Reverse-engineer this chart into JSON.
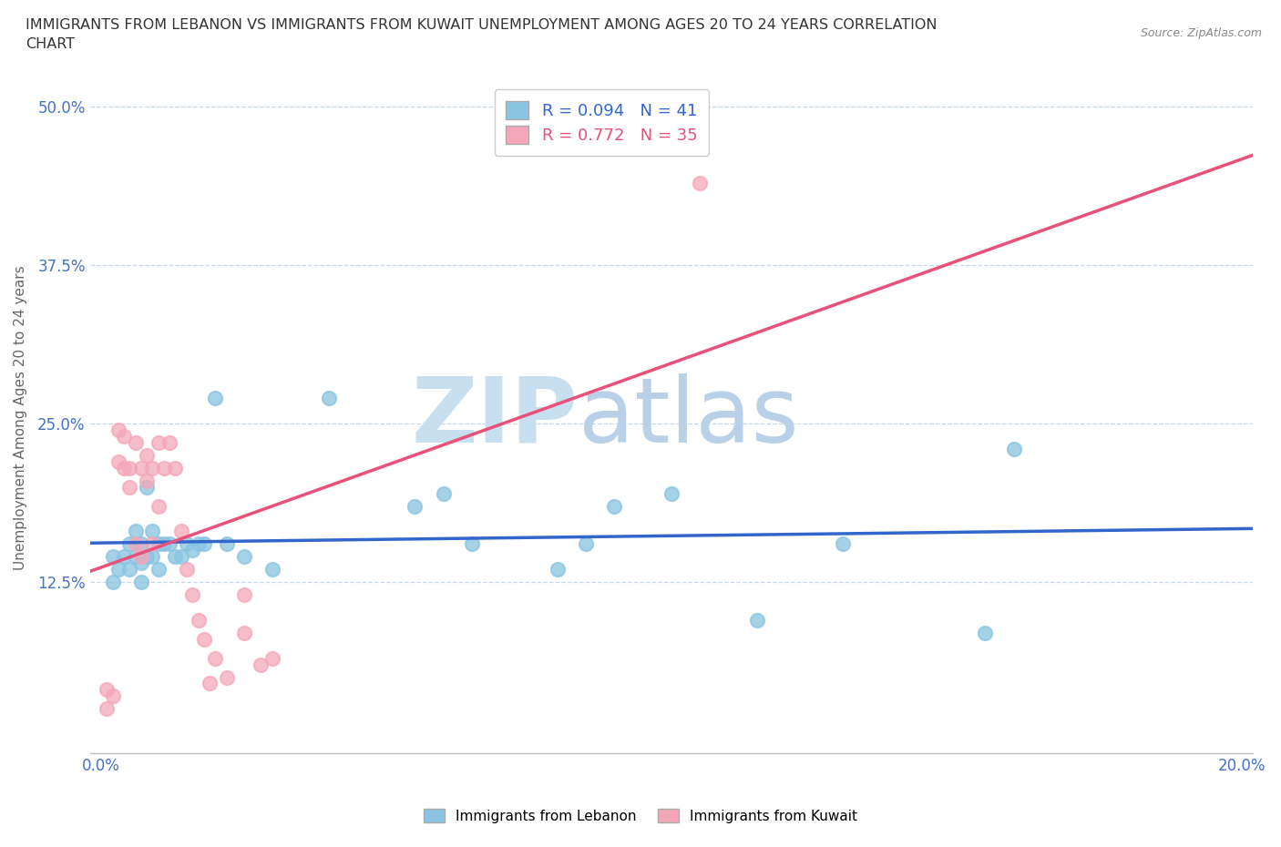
{
  "title_line1": "IMMIGRANTS FROM LEBANON VS IMMIGRANTS FROM KUWAIT UNEMPLOYMENT AMONG AGES 20 TO 24 YEARS CORRELATION",
  "title_line2": "CHART",
  "source": "Source: ZipAtlas.com",
  "ylabel": "Unemployment Among Ages 20 to 24 years",
  "xlim": [
    -0.002,
    0.202
  ],
  "ylim": [
    -0.01,
    0.52
  ],
  "xticks": [
    0.0,
    0.04,
    0.08,
    0.12,
    0.16,
    0.2
  ],
  "xticklabels": [
    "0.0%",
    "",
    "",
    "",
    "",
    "20.0%"
  ],
  "yticks": [
    0.0,
    0.125,
    0.25,
    0.375,
    0.5
  ],
  "yticklabels": [
    "",
    "12.5%",
    "25.0%",
    "37.5%",
    "50.0%"
  ],
  "lebanon_dot_color": "#89c4e1",
  "kuwait_dot_color": "#f4a7b9",
  "lebanon_line_color": "#3366cc",
  "kuwait_line_color": "#e8517a",
  "R_lebanon": 0.094,
  "N_lebanon": 41,
  "R_kuwait": 0.772,
  "N_kuwait": 35,
  "watermark_top": "ZIP",
  "watermark_bottom": "atlas",
  "watermark_color": "#ccddf0",
  "grid_color": "#c8d8e8",
  "tick_color": "#4472c4",
  "title_color": "#333333",
  "source_color": "#888888",
  "lebanon_scatter_x": [
    0.002,
    0.002,
    0.003,
    0.004,
    0.005,
    0.005,
    0.006,
    0.006,
    0.007,
    0.007,
    0.007,
    0.008,
    0.008,
    0.009,
    0.009,
    0.01,
    0.01,
    0.011,
    0.012,
    0.013,
    0.014,
    0.015,
    0.016,
    0.017,
    0.018,
    0.02,
    0.022,
    0.025,
    0.03,
    0.04,
    0.055,
    0.06,
    0.065,
    0.08,
    0.085,
    0.09,
    0.1,
    0.115,
    0.13,
    0.155,
    0.16
  ],
  "lebanon_scatter_y": [
    0.145,
    0.125,
    0.135,
    0.145,
    0.155,
    0.135,
    0.165,
    0.145,
    0.155,
    0.14,
    0.125,
    0.2,
    0.145,
    0.165,
    0.145,
    0.155,
    0.135,
    0.155,
    0.155,
    0.145,
    0.145,
    0.155,
    0.15,
    0.155,
    0.155,
    0.27,
    0.155,
    0.145,
    0.135,
    0.27,
    0.185,
    0.195,
    0.155,
    0.135,
    0.155,
    0.185,
    0.195,
    0.095,
    0.155,
    0.085,
    0.23
  ],
  "kuwait_scatter_x": [
    0.001,
    0.001,
    0.002,
    0.003,
    0.003,
    0.004,
    0.004,
    0.005,
    0.005,
    0.006,
    0.006,
    0.007,
    0.007,
    0.008,
    0.008,
    0.009,
    0.009,
    0.01,
    0.01,
    0.011,
    0.012,
    0.013,
    0.014,
    0.015,
    0.016,
    0.017,
    0.018,
    0.019,
    0.02,
    0.022,
    0.025,
    0.025,
    0.028,
    0.03,
    0.105
  ],
  "kuwait_scatter_y": [
    0.04,
    0.025,
    0.035,
    0.245,
    0.22,
    0.24,
    0.215,
    0.2,
    0.215,
    0.155,
    0.235,
    0.215,
    0.145,
    0.225,
    0.205,
    0.155,
    0.215,
    0.235,
    0.185,
    0.215,
    0.235,
    0.215,
    0.165,
    0.135,
    0.115,
    0.095,
    0.08,
    0.045,
    0.065,
    0.05,
    0.115,
    0.085,
    0.06,
    0.065,
    0.44
  ]
}
